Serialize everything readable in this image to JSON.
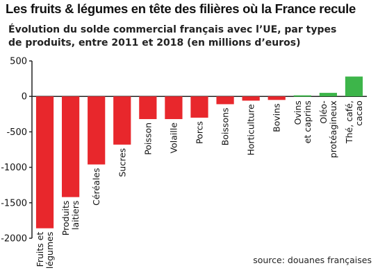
{
  "title": "Les fruits & légumes en tête des filières où la France recule",
  "subtitle_lines": [
    "Évolution du solde commercial français avec l’UE, par types",
    "de produits, entre 2011 et 2018 (en millions d’euros)"
  ],
  "source": "source: douanes françaises",
  "colors": {
    "negative": "#e8272c",
    "positive": "#3db54a",
    "axis": "#222222"
  },
  "chart_data": {
    "type": "bar",
    "categories": [
      [
        "Fruits et",
        "légumes"
      ],
      [
        "Produits",
        "laitiers"
      ],
      [
        "Céréales"
      ],
      [
        "Sucres"
      ],
      [
        "Poisson"
      ],
      [
        "Volaille"
      ],
      [
        "Porcs"
      ],
      [
        "Boissons"
      ],
      [
        "Horticulture"
      ],
      [
        "Bovins"
      ],
      [
        "Ovins",
        "et caprins"
      ],
      [
        "Oléo-",
        "protéagineux"
      ],
      [
        "Thé, café,",
        "cacao"
      ]
    ],
    "values": [
      -1860,
      -1420,
      -960,
      -680,
      -320,
      -320,
      -300,
      -110,
      -60,
      -50,
      15,
      50,
      280
    ],
    "ylim": [
      -2000,
      500
    ],
    "yticks": [
      500,
      0,
      -500,
      -1000,
      -1500,
      -2000
    ],
    "grid": false
  }
}
